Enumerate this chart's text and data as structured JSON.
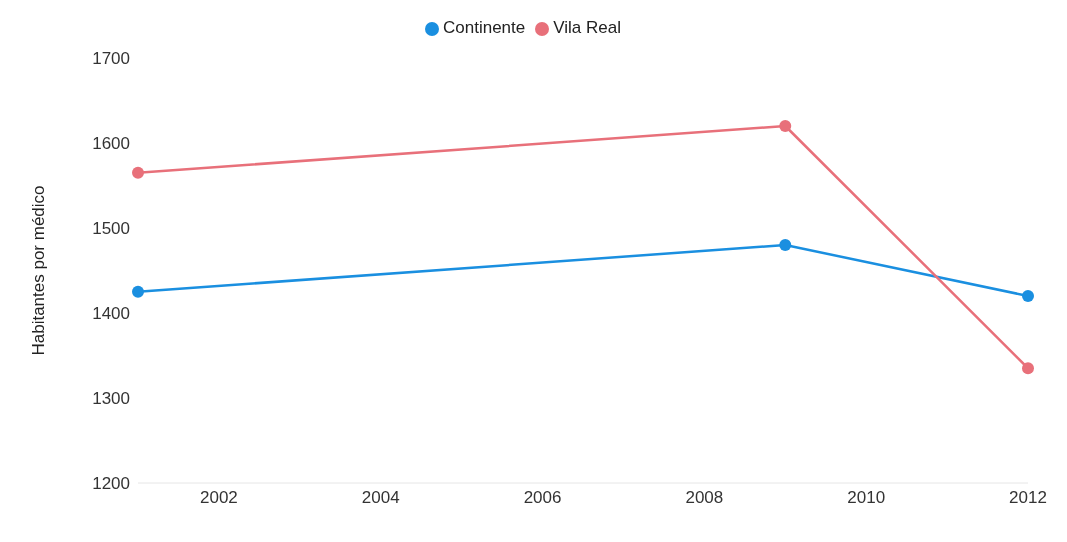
{
  "chart_data": {
    "type": "line",
    "ylabel": "Habitantes por médico",
    "x": [
      2001,
      2009,
      2012
    ],
    "series": [
      {
        "name": "Continente",
        "color": "#1a8fe0",
        "values": [
          1425,
          1480,
          1420
        ]
      },
      {
        "name": "Vila Real",
        "color": "#e8707a",
        "values": [
          1565,
          1620,
          1335
        ]
      }
    ],
    "xlim": [
      2001,
      2012
    ],
    "xticks": [
      2002,
      2004,
      2006,
      2008,
      2010,
      2012
    ],
    "ylim": [
      1200,
      1700
    ],
    "yticks": [
      1200,
      1300,
      1400,
      1500,
      1600,
      1700
    ],
    "grid": false,
    "legend": "top",
    "marker": "circle",
    "line_style": "solid"
  }
}
